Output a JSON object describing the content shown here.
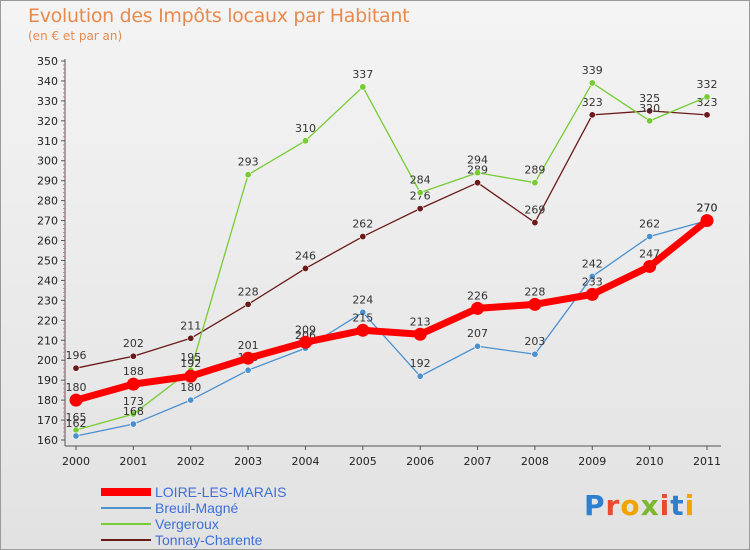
{
  "chart_data": {
    "type": "line",
    "title": "Evolution des Impôts locaux par Habitant",
    "subtitle": "(en € et par an)",
    "x": [
      "2000",
      "2001",
      "2002",
      "2003",
      "2004",
      "2005",
      "2006",
      "2007",
      "2008",
      "2009",
      "2010",
      "2011"
    ],
    "ylim": [
      160,
      350
    ],
    "ystep": 10,
    "grid": false,
    "legend_position": "bottom-left",
    "series": [
      {
        "name": "Tonnay-Charente",
        "color": "#6b1a1a",
        "values": [
          196,
          202,
          211,
          228,
          246,
          262,
          276,
          289,
          269,
          323,
          325,
          323
        ]
      },
      {
        "name": "Vergeroux",
        "color": "#77cc33",
        "values": [
          165,
          173,
          195,
          293,
          310,
          337,
          284,
          294,
          289,
          339,
          320,
          332
        ]
      },
      {
        "name": "Breuil-Magné",
        "color": "#4b90cf",
        "values": [
          162,
          168,
          180,
          195,
          206,
          224,
          192,
          207,
          203,
          242,
          262,
          270
        ]
      },
      {
        "name": "LOIRE-LES-MARAIS",
        "color": "#ff0000",
        "values": [
          180,
          188,
          192,
          201,
          209,
          215,
          213,
          226,
          228,
          233,
          247,
          270
        ]
      }
    ],
    "legend_order": [
      "LOIRE-LES-MARAIS",
      "Breuil-Magné",
      "Vergeroux",
      "Tonnay-Charente"
    ]
  },
  "logo": {
    "letters": [
      "P",
      "r",
      "o",
      "x",
      "i",
      "t",
      "i"
    ],
    "colors": [
      "#2f7fd1",
      "#e94b2f",
      "#f2a300",
      "#7ab82e",
      "#e94b2f",
      "#2f7fd1",
      "#f2a300"
    ]
  }
}
